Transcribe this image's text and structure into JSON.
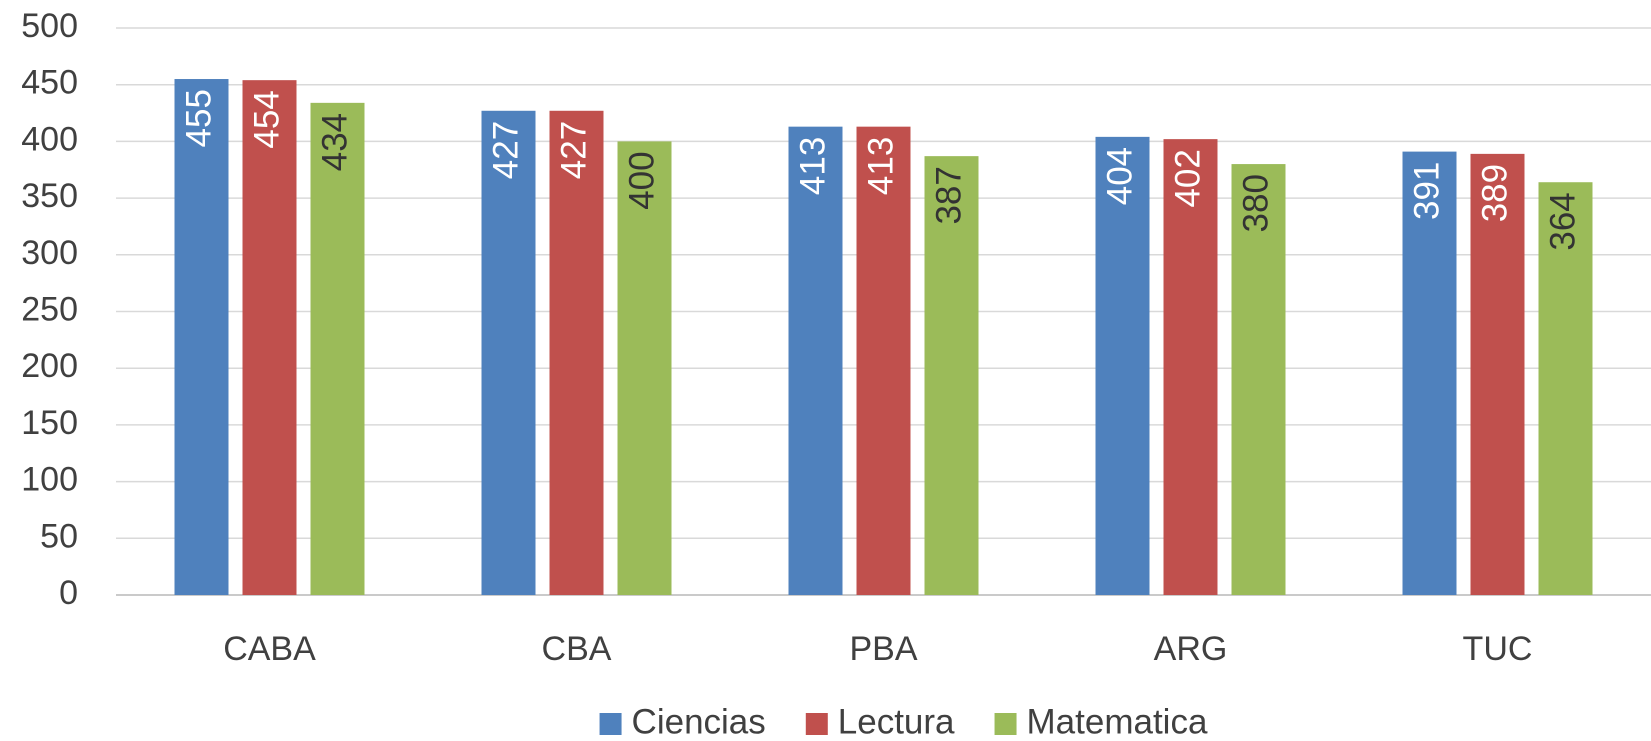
{
  "chart_data": {
    "type": "bar",
    "categories": [
      "CABA",
      "CBA",
      "PBA",
      "ARG",
      "TUC"
    ],
    "series": [
      {
        "name": "Ciencias",
        "color": "#4f81bd",
        "label_color": "#ffffff",
        "values": [
          455,
          427,
          413,
          404,
          391
        ]
      },
      {
        "name": "Lectura",
        "color": "#c0504d",
        "label_color": "#ffffff",
        "values": [
          454,
          427,
          413,
          402,
          389
        ]
      },
      {
        "name": "Matematica",
        "color": "#9bbb59",
        "label_color": "#333333",
        "values": [
          434,
          400,
          387,
          380,
          364
        ]
      }
    ],
    "ylim": [
      0,
      500
    ],
    "yticks": [
      0,
      50,
      100,
      150,
      200,
      250,
      300,
      350,
      400,
      450,
      500
    ],
    "grid": true,
    "legend": "bottom"
  }
}
